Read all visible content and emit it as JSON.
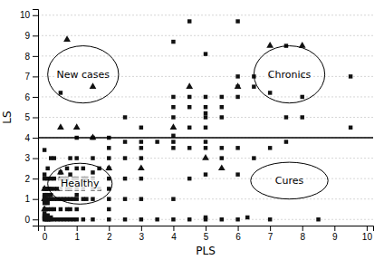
{
  "chart_data": {
    "type": "scatter",
    "xlabel": "PLS",
    "ylabel": "LS",
    "xlim": [
      -0.2,
      10.2
    ],
    "ylim": [
      -0.3,
      10.3
    ],
    "xticks": [
      0,
      1,
      2,
      3,
      4,
      5,
      6,
      7,
      8,
      9,
      10
    ],
    "yticks": [
      0,
      1,
      2,
      3,
      4,
      5,
      6,
      7,
      8,
      9,
      10
    ],
    "grid": true,
    "hlines": [
      4
    ],
    "annotations": [
      {
        "text": "New cases",
        "x": 1.2,
        "y": 7.1,
        "width": 2.2,
        "height": 2.8
      },
      {
        "text": "Chronics",
        "x": 7.6,
        "y": 7.1,
        "width": 2.2,
        "height": 2.8
      },
      {
        "text": "Healthy",
        "x": 1.1,
        "y": 1.75,
        "width": 2.0,
        "height": 2.0
      },
      {
        "text": "Cures",
        "x": 7.6,
        "y": 1.9,
        "width": 2.4,
        "height": 1.8
      }
    ],
    "series": [
      {
        "marker": "square",
        "color": "#111111",
        "x": [
          0,
          0,
          0,
          0,
          0,
          0,
          0,
          0,
          0,
          0,
          0,
          0,
          0,
          0,
          0,
          0.05,
          0.05,
          0.05,
          0.05,
          0.05,
          0.1,
          0.1,
          0.1,
          0.1,
          0.1,
          0.1,
          0.1,
          0.1,
          0.1,
          0.1,
          0.15,
          0.15,
          0.15,
          0.2,
          0.2,
          0.2,
          0.2,
          0.2,
          0.2,
          0.2,
          0.2,
          0.3,
          0.3,
          0.3,
          0.3,
          0.3,
          0.3,
          0.4,
          0.4,
          0.4,
          0.5,
          0.5,
          0.5,
          0.5,
          0.5,
          0.5,
          0.5,
          0.6,
          0.6,
          0.6,
          0.7,
          0.7,
          0.7,
          0.7,
          0.7,
          0.7,
          0.8,
          0.8,
          0.8,
          0.8,
          0.8,
          0.8,
          0.9,
          0.9,
          0.9,
          1.0,
          1.0,
          1.0,
          1.0,
          1.0,
          1.0,
          1.0,
          1.0,
          1.0,
          1.2,
          1.2,
          1.2,
          1.2,
          1.2,
          1.3,
          1.3,
          1.5,
          1.5,
          1.5,
          1.5,
          1.5,
          1.5,
          1.5,
          1.7,
          1.7,
          2.0,
          2.0,
          2.0,
          2.0,
          2.0,
          2.0,
          2.0,
          2.0,
          2.0,
          2.5,
          2.5,
          2.5,
          2.5,
          2.5,
          2.5,
          3.0,
          3.0,
          3.0,
          3.0,
          3.0,
          3.0,
          3.0,
          3.5,
          3.5,
          4.0,
          4.0,
          4.0,
          4.0,
          4.0,
          4.0,
          4.0,
          4.0,
          4.0,
          4.5,
          4.5,
          4.5,
          4.5,
          4.5,
          4.5,
          4.5,
          5.0,
          5.0,
          5.0,
          5.0,
          5.0,
          5.0,
          5.0,
          5.0,
          5.0,
          5.0,
          5.0,
          5.5,
          5.5,
          5.5,
          5.5,
          5.5,
          5.5,
          6.0,
          6.0,
          6.0,
          6.0,
          6.0,
          6.0,
          6.0,
          6.3,
          6.5,
          6.5,
          6.5,
          7.0,
          7.0,
          7.0,
          7.0,
          7.5,
          7.5,
          7.5,
          8.0,
          8.0,
          8.0,
          8.5,
          9.5,
          9.5
        ],
        "values": [
          0.0,
          0.05,
          0.1,
          0.15,
          0.2,
          0.3,
          0.5,
          0.8,
          1.0,
          1.1,
          1.2,
          1.5,
          2.0,
          2.2,
          3.4,
          0.0,
          0.1,
          1.0,
          1.2,
          1.5,
          0.0,
          0.1,
          0.2,
          0.5,
          0.8,
          1.0,
          1.2,
          1.5,
          2.0,
          2.5,
          0.0,
          1.0,
          1.5,
          0.0,
          0.1,
          0.5,
          1.0,
          1.2,
          1.5,
          2.0,
          3.0,
          0.0,
          0.5,
          1.0,
          1.5,
          2.0,
          3.0,
          0.0,
          1.0,
          1.5,
          0.0,
          0.5,
          1.0,
          1.5,
          2.0,
          2.3,
          6.2,
          0.0,
          1.0,
          2.0,
          0.0,
          0.5,
          1.0,
          1.5,
          2.0,
          2.5,
          0.0,
          0.5,
          1.0,
          1.5,
          2.2,
          3.0,
          0.0,
          1.0,
          2.0,
          0.0,
          0.5,
          1.0,
          1.2,
          1.5,
          2.0,
          2.5,
          3.0,
          4.0,
          0.0,
          1.0,
          1.5,
          2.0,
          2.5,
          1.0,
          2.0,
          0.0,
          1.0,
          1.5,
          2.0,
          2.3,
          3.0,
          4.0,
          1.5,
          2.5,
          0.0,
          0.5,
          1.0,
          1.5,
          2.0,
          2.5,
          3.0,
          3.5,
          4.0,
          0.0,
          1.0,
          2.0,
          3.0,
          3.8,
          5.0,
          0.0,
          1.0,
          2.0,
          3.0,
          3.5,
          3.8,
          4.5,
          0.0,
          3.8,
          0.0,
          1.0,
          3.5,
          3.8,
          4.1,
          5.0,
          5.5,
          6.0,
          8.7,
          0.0,
          2.0,
          3.5,
          4.5,
          5.5,
          6.0,
          9.7,
          0.0,
          0.1,
          2.2,
          3.5,
          3.8,
          4.5,
          5.0,
          5.2,
          5.5,
          6.0,
          8.1,
          0.0,
          3.0,
          3.5,
          5.0,
          5.5,
          6.0,
          0.0,
          2.2,
          3.5,
          6.0,
          6.5,
          7.0,
          9.7,
          0.1,
          3.0,
          6.5,
          7.0,
          0.0,
          3.5,
          6.2,
          7.0,
          3.8,
          5.0,
          8.5,
          5.0,
          6.0,
          7.0,
          0.0,
          4.5,
          7.0
        ]
      },
      {
        "marker": "triangle",
        "color": "#111111",
        "x": [
          0.0,
          0.0,
          0.0,
          0.5,
          0.5,
          0.7,
          1.0,
          1.5,
          1.5,
          2.0,
          3.0,
          4.0,
          4.5,
          5.0,
          5.5,
          6.0,
          7.0,
          8.0
        ],
        "values": [
          0.5,
          1.0,
          1.5,
          4.5,
          2.3,
          8.8,
          4.5,
          4.0,
          6.5,
          2.5,
          2.5,
          4.5,
          6.5,
          3.0,
          2.5,
          6.5,
          8.5,
          8.5
        ]
      }
    ]
  }
}
